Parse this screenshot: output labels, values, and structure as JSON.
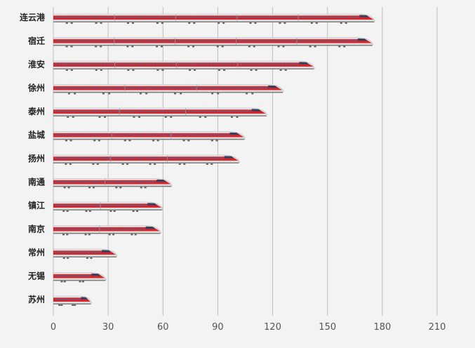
{
  "chart_data": {
    "type": "bar",
    "orientation": "horizontal",
    "categories": [
      "连云港",
      "宿迁",
      "淮安",
      "徐州",
      "泰州",
      "盐城",
      "扬州",
      "南通",
      "镇江",
      "南京",
      "常州",
      "无锡",
      "苏州"
    ],
    "values": [
      176,
      175,
      143,
      126,
      117,
      105,
      102,
      65,
      60,
      59,
      35,
      29,
      21
    ],
    "xlim": [
      0,
      210
    ],
    "xticks": [
      "0",
      "30",
      "60",
      "90",
      "120",
      "150",
      "180",
      "210"
    ],
    "grid": true,
    "mark_style": "high-speed-train",
    "colors": {
      "train_red": "#d9262b",
      "train_body": "#e6e6e6",
      "window": "#5a5f8a",
      "grid": "#bdbdbd",
      "background": "#f3f3f3"
    }
  }
}
